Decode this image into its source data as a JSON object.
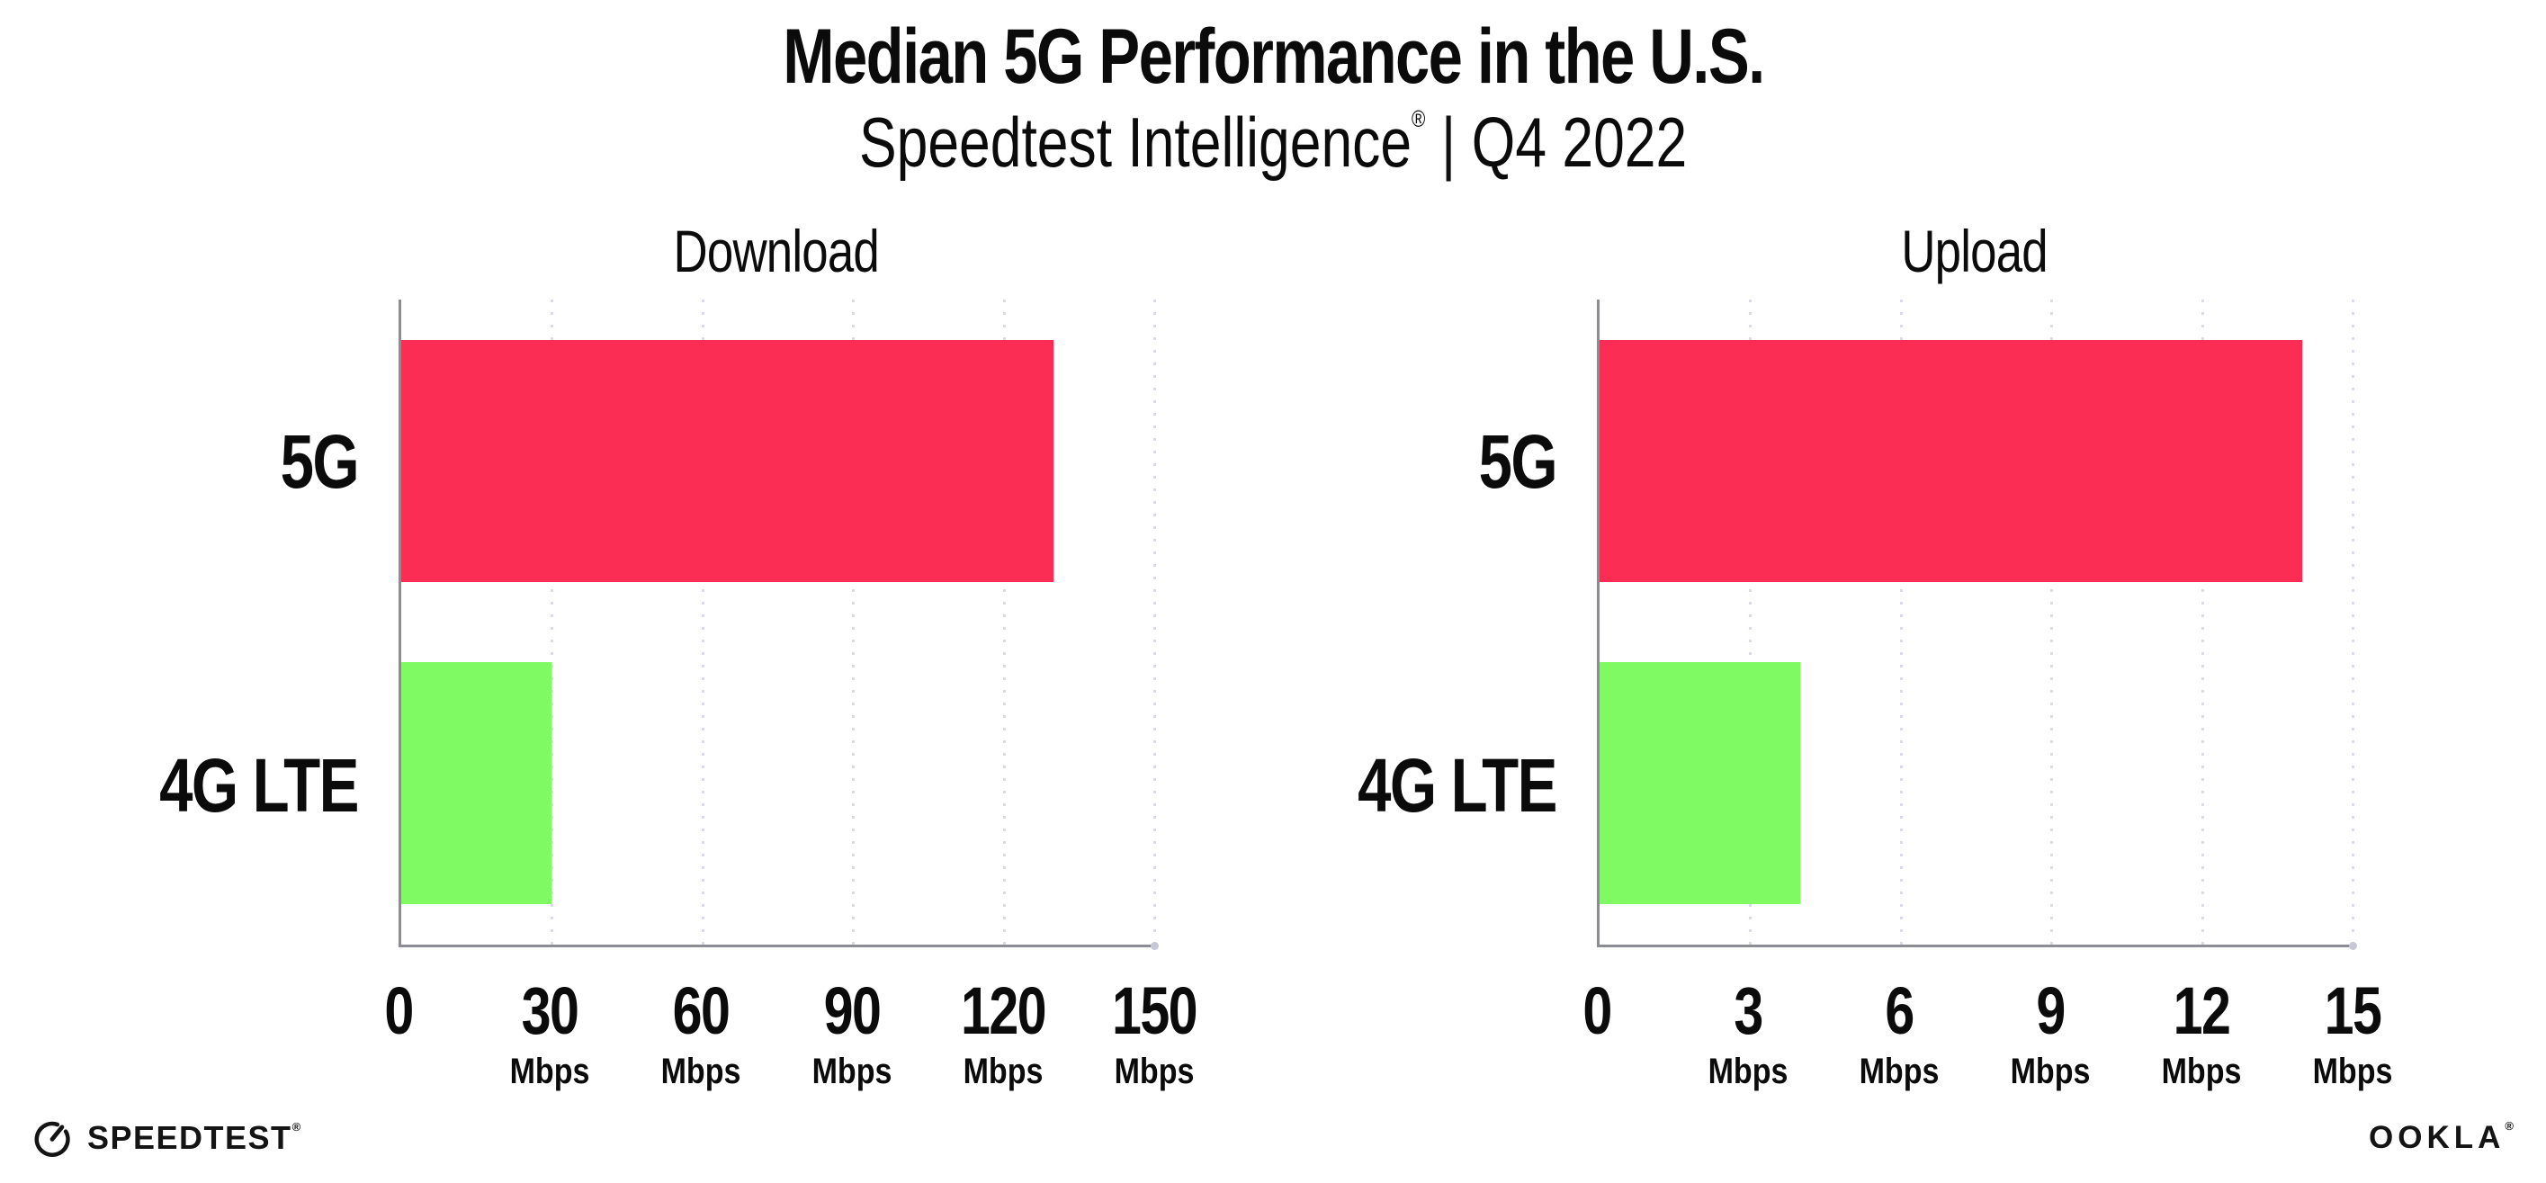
{
  "header": {
    "title": "Median 5G Performance in the U.S.",
    "subtitle_brand": "Speedtest Intelligence",
    "subtitle_registered_mark": "®",
    "subtitle_separator": "|",
    "subtitle_period": "Q4 2022"
  },
  "chart_data": [
    {
      "type": "bar",
      "orientation": "horizontal",
      "title": "Download",
      "categories": [
        "5G",
        "4G LTE"
      ],
      "values": [
        130,
        30
      ],
      "unit": "Mbps",
      "xlim": [
        0,
        150
      ],
      "xticks": [
        0,
        30,
        60,
        90,
        120,
        150
      ],
      "bar_colors": [
        "#fc2d55",
        "#80fa62"
      ],
      "grid": "vertical-dotted",
      "legend": "none"
    },
    {
      "type": "bar",
      "orientation": "horizontal",
      "title": "Upload",
      "categories": [
        "5G",
        "4G LTE"
      ],
      "values": [
        14,
        4
      ],
      "unit": "Mbps",
      "xlim": [
        0,
        15
      ],
      "xticks": [
        0,
        3,
        6,
        9,
        12,
        15
      ],
      "bar_colors": [
        "#fc2d55",
        "#80fa62"
      ],
      "grid": "vertical-dotted",
      "legend": "none"
    }
  ],
  "footer": {
    "speedtest_wordmark": "SPEEDTEST",
    "speedtest_registered_mark": "®",
    "ookla_wordmark": "OOKLA",
    "ookla_registered_mark": "®"
  },
  "colors": {
    "background": "#ffffff",
    "text": "#0b0b0b",
    "axis": "#8c8c94",
    "gridline": "#dbdbe8",
    "bar_5g": "#fc2d55",
    "bar_4g_lte": "#80fa62"
  }
}
